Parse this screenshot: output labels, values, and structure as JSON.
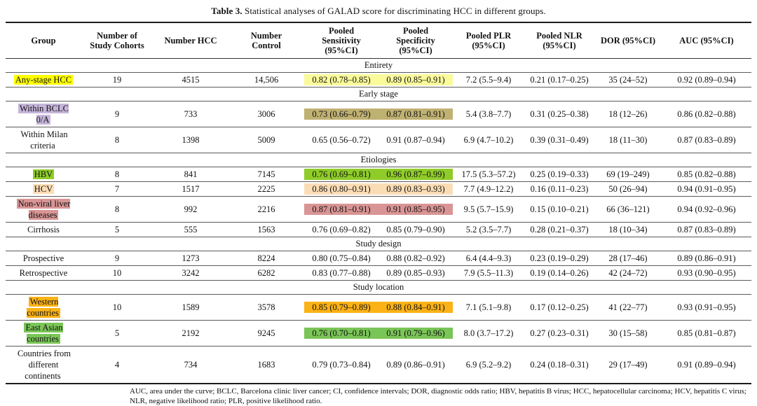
{
  "title": {
    "label": "Table 3.",
    "text": " Statistical analyses of GALAD score for discriminating HCC in different groups."
  },
  "columns": [
    "Group",
    "Number of\nStudy Cohorts",
    "Number HCC",
    "Number\nControl",
    "Pooled\nSensitivity\n(95%CI)",
    "Pooled\nSpecificity\n(95%CI)",
    "Pooled PLR\n(95%CI)",
    "Pooled NLR\n(95%CI)",
    "DOR (95%CI)",
    "AUC (95%CI)"
  ],
  "highlight_palette": {
    "yellow_label": "#FFFF00",
    "pale_yellow_cells": "#FAFA9B",
    "lavender": "#C6B5DA",
    "olive": "#BFB172",
    "yellow_green": "#8FCC29",
    "peach": "#FBDDB5",
    "rose": "#D99595",
    "amber": "#FBB216",
    "green": "#7AC557"
  },
  "sections": [
    {
      "title": "Entirety",
      "rows": [
        {
          "group": "Any-stage HCC",
          "group_highlight": "#FFFF00",
          "cohorts": "19",
          "hcc": "4515",
          "control": "14,506",
          "sensitivity": "0.82 (0.78–0.85)",
          "specificity": "0.89 (0.85–0.91)",
          "sens_spec_highlight": "#FAFA9B",
          "plr": "7.2 (5.5–9.4)",
          "nlr": "0.21 (0.17–0.25)",
          "dor": "35 (24–52)",
          "auc": "0.92 (0.89–0.94)"
        }
      ]
    },
    {
      "title": "Early stage",
      "rows": [
        {
          "group": "Within BCLC 0/A",
          "group_highlight": "#C6B5DA",
          "cohorts": "9",
          "hcc": "733",
          "control": "3006",
          "sensitivity": "0.73 (0.66–0.79)",
          "specificity": "0.87 (0.81–0.91)",
          "sens_spec_highlight": "#BFB172",
          "plr": "5.4 (3.8–7.7)",
          "nlr": "0.31 (0.25–0.38)",
          "dor": "18 (12–26)",
          "auc": "0.86 (0.82–0.88)"
        },
        {
          "group": "Within Milan criteria",
          "group_highlight": null,
          "cohorts": "8",
          "hcc": "1398",
          "control": "5009",
          "sensitivity": "0.65 (0.56–0.72)",
          "specificity": "0.91 (0.87–0.94)",
          "sens_spec_highlight": null,
          "plr": "6.9 (4.7–10.2)",
          "nlr": "0.39 (0.31–0.49)",
          "dor": "18 (11–30)",
          "auc": "0.87 (0.83–0.89)"
        }
      ]
    },
    {
      "title": "Etiologies",
      "rows": [
        {
          "group": "HBV",
          "group_highlight": "#8FCC29",
          "cohorts": "8",
          "hcc": "841",
          "control": "7145",
          "sensitivity": "0.76 (0.69–0.81)",
          "specificity": "0.96 (0.87–0.99)",
          "sens_spec_highlight": "#8FCC29",
          "plr": "17.5 (5.3–57.2)",
          "nlr": "0.25 (0.19–0.33)",
          "dor": "69 (19–249)",
          "auc": "0.85 (0.82–0.88)"
        },
        {
          "group": "HCV",
          "group_highlight": "#FBDDB5",
          "cohorts": "7",
          "hcc": "1517",
          "control": "2225",
          "sensitivity": "0.86 (0.80–0.91)",
          "specificity": "0.89 (0.83–0.93)",
          "sens_spec_highlight": "#FBDDB5",
          "plr": "7.7 (4.9–12.2)",
          "nlr": "0.16 (0.11–0.23)",
          "dor": "50 (26–94)",
          "auc": "0.94 (0.91–0.95)"
        },
        {
          "group": "Non-viral liver diseases",
          "group_highlight": "#D99595",
          "cohorts": "8",
          "hcc": "992",
          "control": "2216",
          "sensitivity": "0.87 (0.81–0.91)",
          "specificity": "0.91 (0.85–0.95)",
          "sens_spec_highlight": "#D99595",
          "plr": "9.5 (5.7–15.9)",
          "nlr": "0.15 (0.10–0.21)",
          "dor": "66 (36–121)",
          "auc": "0.94 (0.92–0.96)"
        },
        {
          "group": "Cirrhosis",
          "group_highlight": null,
          "cohorts": "5",
          "hcc": "555",
          "control": "1563",
          "sensitivity": "0.76 (0.69–0.82)",
          "specificity": "0.85 (0.79–0.90)",
          "sens_spec_highlight": null,
          "plr": "5.2 (3.5–7.7)",
          "nlr": "0.28 (0.21–0.37)",
          "dor": "18 (10–34)",
          "auc": "0.87 (0.83–0.89)"
        }
      ]
    },
    {
      "title": "Study design",
      "rows": [
        {
          "group": "Prospective",
          "group_highlight": null,
          "cohorts": "9",
          "hcc": "1273",
          "control": "8224",
          "sensitivity": "0.80 (0.75–0.84)",
          "specificity": "0.88 (0.82–0.92)",
          "sens_spec_highlight": null,
          "plr": "6.4 (4.4–9.3)",
          "nlr": "0.23 (0.19–0.29)",
          "dor": "28 (17–46)",
          "auc": "0.89 (0.86–0.91)"
        },
        {
          "group": "Retrospective",
          "group_highlight": null,
          "cohorts": "10",
          "hcc": "3242",
          "control": "6282",
          "sensitivity": "0.83 (0.77–0.88)",
          "specificity": "0.89 (0.85–0.93)",
          "sens_spec_highlight": null,
          "plr": "7.9 (5.5–11.3)",
          "nlr": "0.19 (0.14–0.26)",
          "dor": "42 (24–72)",
          "auc": "0.93 (0.90–0.95)"
        }
      ]
    },
    {
      "title": "Study location",
      "rows": [
        {
          "group": "Western countries",
          "group_highlight": "#FBB216",
          "cohorts": "10",
          "hcc": "1589",
          "control": "3578",
          "sensitivity": "0.85 (0.79–0.89)",
          "specificity": "0.88 (0.84–0.91)",
          "sens_spec_highlight": "#FBB216",
          "plr": "7.1 (5.1–9.8)",
          "nlr": "0.17 (0.12–0.25)",
          "dor": "41 (22–77)",
          "auc": "0.93 (0.91–0.95)"
        },
        {
          "group": "East Asian countries",
          "group_highlight": "#7AC557",
          "cohorts": "5",
          "hcc": "2192",
          "control": "9245",
          "sensitivity": "0.76 (0.70–0.81)",
          "specificity": "0.91 (0.79–0.96)",
          "sens_spec_highlight": "#7AC557",
          "plr": "8.0 (3.7–17.2)",
          "nlr": "0.27 (0.23–0.31)",
          "dor": "30 (15–58)",
          "auc": "0.85 (0.81–0.87)"
        },
        {
          "group": "Countries from different continents",
          "group_highlight": null,
          "cohorts": "4",
          "hcc": "734",
          "control": "1683",
          "sensitivity": "0.79 (0.73–0.84)",
          "specificity": "0.89 (0.86–0.91)",
          "sens_spec_highlight": null,
          "plr": "6.9 (5.2–9.2)",
          "nlr": "0.24 (0.18–0.31)",
          "dor": "29 (17–49)",
          "auc": "0.91 (0.89–0.94)"
        }
      ]
    }
  ],
  "footnote": "AUC, area under the curve; BCLC, Barcelona clinic liver cancer; CI, confidence intervals; DOR, diagnostic odds ratio; HBV, hepatitis B virus; HCC, hepatocellular carcinoma; HCV, hepatitis C virus; NLR, negative likelihood ratio; PLR, positive likelihood ratio."
}
